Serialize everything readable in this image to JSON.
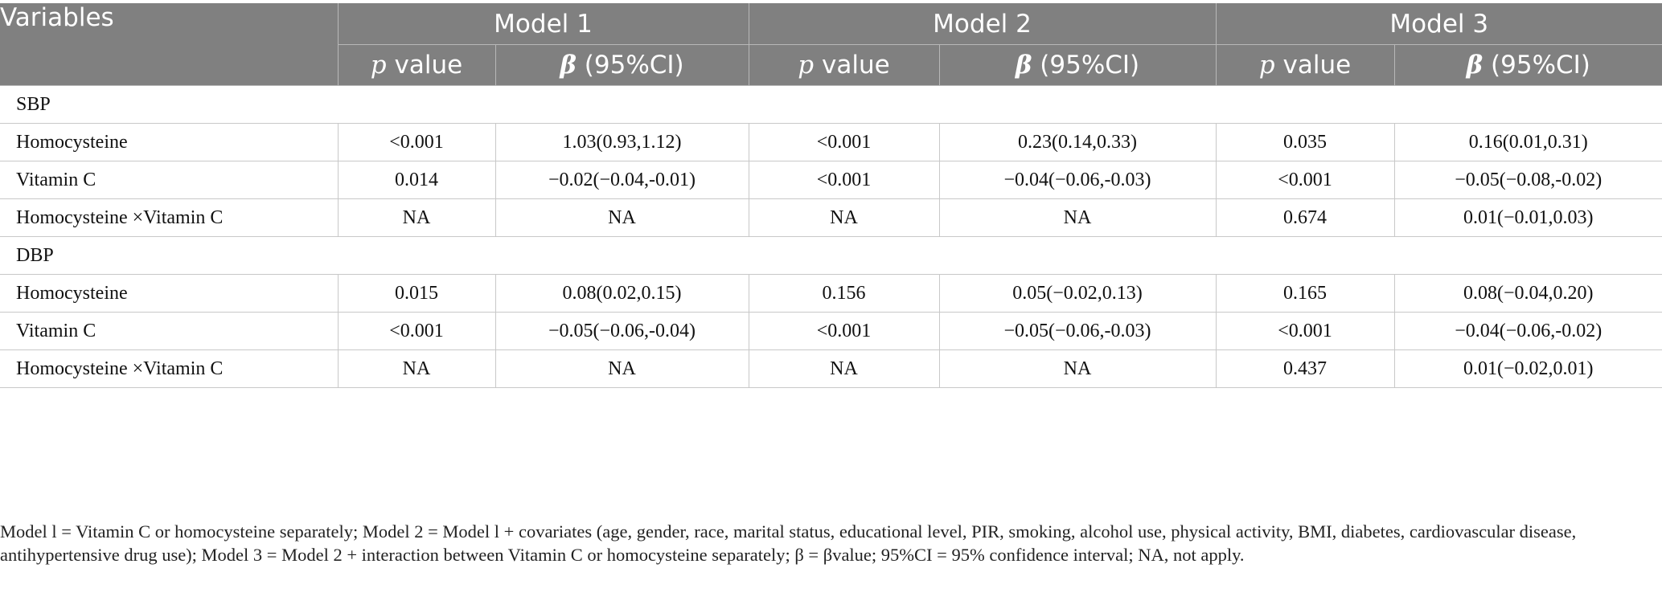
{
  "header": {
    "variables": "Variables",
    "models": [
      "Model 1",
      "Model 2",
      "Model 3"
    ],
    "p_italic": "p",
    "p_rest": " value",
    "beta_symbol": "β",
    "beta_rest": " (95%CI)"
  },
  "groups": [
    {
      "label": "SBP",
      "rows": [
        {
          "variable": "Homocysteine",
          "m1_p": "<0.001",
          "m1_b": "1.03(0.93,1.12)",
          "m2_p": "<0.001",
          "m2_b": "0.23(0.14,0.33)",
          "m3_p": "0.035",
          "m3_b": "0.16(0.01,0.31)"
        },
        {
          "variable": "Vitamin C",
          "m1_p": "0.014",
          "m1_b": "−0.02(−0.04,-0.01)",
          "m2_p": "<0.001",
          "m2_b": "−0.04(−0.06,-0.03)",
          "m3_p": "<0.001",
          "m3_b": "−0.05(−0.08,-0.02)"
        },
        {
          "variable": "Homocysteine ×Vitamin C",
          "m1_p": "NA",
          "m1_b": "NA",
          "m2_p": "NA",
          "m2_b": "NA",
          "m3_p": "0.674",
          "m3_b": "0.01(−0.01,0.03)"
        }
      ]
    },
    {
      "label": "DBP",
      "rows": [
        {
          "variable": "Homocysteine",
          "m1_p": "0.015",
          "m1_b": "0.08(0.02,0.15)",
          "m2_p": "0.156",
          "m2_b": "0.05(−0.02,0.13)",
          "m3_p": "0.165",
          "m3_b": "0.08(−0.04,0.20)"
        },
        {
          "variable": "Vitamin C",
          "m1_p": "<0.001",
          "m1_b": "−0.05(−0.06,-0.04)",
          "m2_p": "<0.001",
          "m2_b": "−0.05(−0.06,-0.03)",
          "m3_p": "<0.001",
          "m3_b": "−0.04(−0.06,-0.02)"
        },
        {
          "variable": "Homocysteine ×Vitamin C",
          "m1_p": "NA",
          "m1_b": "NA",
          "m2_p": "NA",
          "m2_b": "NA",
          "m3_p": "0.437",
          "m3_b": "0.01(−0.02,0.01)"
        }
      ]
    }
  ],
  "footnote": "Model l = Vitamin C or homocysteine separately; Model 2 = Model l + covariates (age, gender, race, marital status, educational level, PIR, smoking, alcohol use, physical activity, BMI, diabetes, cardiovascular disease, antihypertensive drug use); Model 3 = Model 2 + interaction between Vitamin C or homocysteine separately; β = βvalue; 95%CI = 95% confidence interval; NA, not apply."
}
